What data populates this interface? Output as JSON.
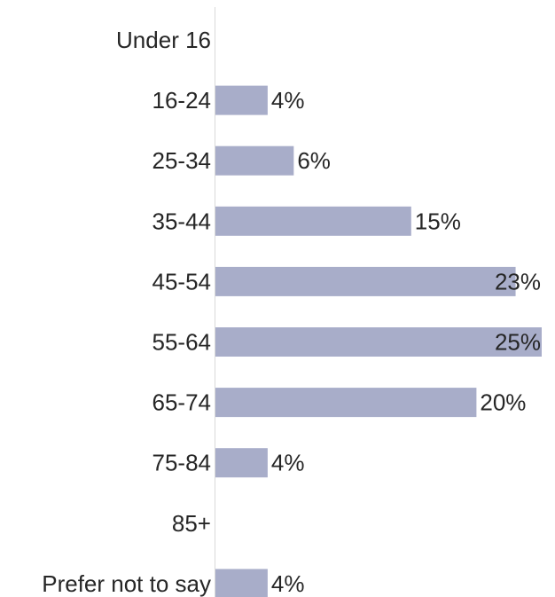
{
  "chart_data": {
    "type": "bar",
    "orientation": "horizontal",
    "categories": [
      "Under 16",
      "16-24",
      "25-34",
      "35-44",
      "45-54",
      "55-64",
      "65-74",
      "75-84",
      "85+",
      "Prefer not to say"
    ],
    "values": [
      0,
      4,
      6,
      15,
      23,
      25,
      20,
      4,
      0,
      4
    ],
    "value_labels": [
      "",
      "4%",
      "6%",
      "15%",
      "23%",
      "25%",
      "20%",
      "4%",
      "",
      "4%"
    ],
    "unit": "%",
    "xlim": [
      0,
      25
    ],
    "grid": false,
    "legend": "none",
    "title": "",
    "xlabel": "",
    "ylabel": ""
  },
  "colors": {
    "bar": "#A8ADC9",
    "axis": "#D9D9D9",
    "text": "#262626"
  }
}
